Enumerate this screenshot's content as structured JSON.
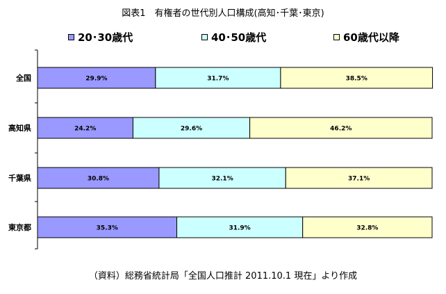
{
  "title": "図表1　有権者の世代別人口構成(高知･千葉･東京)",
  "source_note": "（資料）総務省統計局「全国人口推計 2011.10.1 現在」より作成",
  "colors": {
    "series1": "#9999ff",
    "series2": "#ccffff",
    "series3": "#ffffcc"
  },
  "chart_data": {
    "type": "bar",
    "orientation": "horizontal",
    "stacked": "percent",
    "categories": [
      "全国",
      "高知県",
      "千葉県",
      "東京都"
    ],
    "series": [
      {
        "name": "20･30歳代",
        "values": [
          29.9,
          24.2,
          30.8,
          35.3
        ],
        "labels": [
          "29.9%",
          "24.2%",
          "30.8%",
          "35.3%"
        ]
      },
      {
        "name": "40･50歳代",
        "values": [
          31.7,
          29.6,
          32.1,
          31.9
        ],
        "labels": [
          "31.7%",
          "29.6%",
          "32.1%",
          "31.9%"
        ]
      },
      {
        "name": "60歳代以降",
        "values": [
          38.5,
          46.2,
          37.1,
          32.8
        ],
        "labels": [
          "38.5%",
          "46.2%",
          "37.1%",
          "32.8%"
        ]
      }
    ],
    "xlim": [
      0,
      100
    ],
    "grid": false,
    "legend": "top"
  }
}
